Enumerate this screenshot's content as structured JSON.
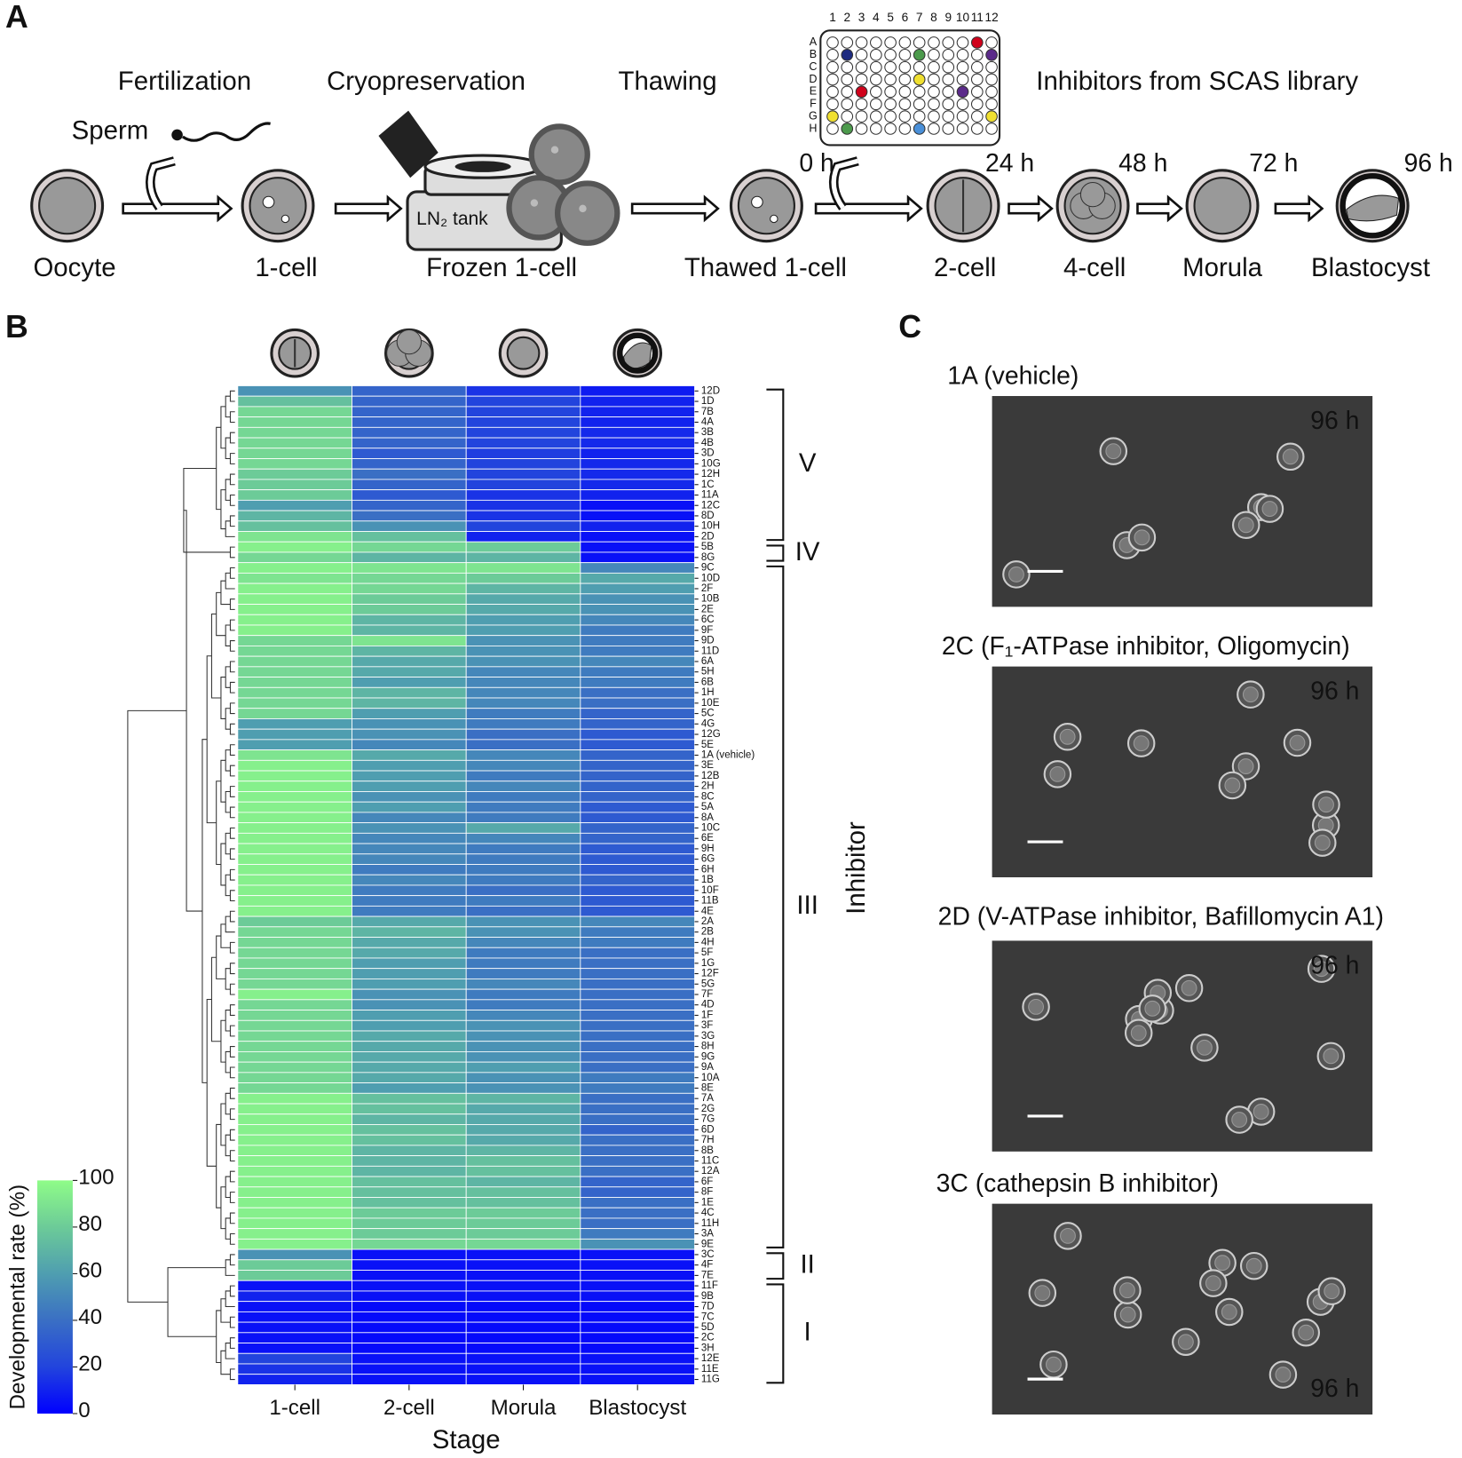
{
  "panel_a": {
    "label": "A",
    "steps": [
      "Fertilization",
      "Cryopreservation",
      "Thawing"
    ],
    "sperm": "Sperm",
    "tank": "LN₂ tank",
    "stages": [
      "Oocyte",
      "1-cell",
      "Frozen 1-cell",
      "Thawed 1-cell",
      "2-cell",
      "4-cell",
      "Morula",
      "Blastocyst"
    ],
    "times": [
      "0 h",
      "24 h",
      "48 h",
      "72 h",
      "96 h"
    ],
    "library": "Inhibitors from SCAS library",
    "plate_columns": [
      "1",
      "2",
      "3",
      "4",
      "5",
      "6",
      "7",
      "8",
      "9",
      "10",
      "11",
      "12"
    ],
    "plate_rows": [
      "A",
      "B",
      "C",
      "D",
      "E",
      "F",
      "G",
      "H"
    ]
  },
  "panel_b": {
    "label": "B"
  },
  "chart_data": {
    "type": "heatmap",
    "x_label": "Stage",
    "y_label": "Inhibitor",
    "categories": [
      "1-cell",
      "2-cell",
      "Morula",
      "Blastocyst"
    ],
    "rows": [
      "12D",
      "1D",
      "7B",
      "4A",
      "3B",
      "4B",
      "3D",
      "10G",
      "12H",
      "1C",
      "11A",
      "12C",
      "8D",
      "10H",
      "2D",
      "5B",
      "8G",
      "9C",
      "10D",
      "2F",
      "10B",
      "2E",
      "6C",
      "9F",
      "9D",
      "11D",
      "6A",
      "5H",
      "6B",
      "1H",
      "10E",
      "5C",
      "4G",
      "12G",
      "5E",
      "1A (vehicle)",
      "3E",
      "12B",
      "2H",
      "8C",
      "5A",
      "8A",
      "10C",
      "6E",
      "9H",
      "6G",
      "6H",
      "1B",
      "10F",
      "11B",
      "4E",
      "2A",
      "2B",
      "4H",
      "5F",
      "1G",
      "12F",
      "5G",
      "7F",
      "4D",
      "1F",
      "3F",
      "3G",
      "8H",
      "9G",
      "9A",
      "10A",
      "8E",
      "7A",
      "2G",
      "7G",
      "6D",
      "7H",
      "8B",
      "11C",
      "12A",
      "6F",
      "8F",
      "1E",
      "4C",
      "11H",
      "3A",
      "9E",
      "3C",
      "4F",
      "7E",
      "11F",
      "9B",
      "7D",
      "7C",
      "5D",
      "2C",
      "3H",
      "12E",
      "11E",
      "11G"
    ],
    "values": [
      [
        55,
        35,
        15,
        8
      ],
      [
        75,
        35,
        20,
        10
      ],
      [
        85,
        35,
        20,
        10
      ],
      [
        85,
        35,
        20,
        10
      ],
      [
        85,
        35,
        20,
        12
      ],
      [
        85,
        35,
        20,
        12
      ],
      [
        85,
        30,
        18,
        10
      ],
      [
        85,
        35,
        20,
        12
      ],
      [
        80,
        40,
        20,
        12
      ],
      [
        80,
        35,
        20,
        12
      ],
      [
        80,
        30,
        15,
        10
      ],
      [
        60,
        35,
        15,
        5
      ],
      [
        70,
        40,
        15,
        5
      ],
      [
        75,
        55,
        20,
        10
      ],
      [
        90,
        75,
        10,
        5
      ],
      [
        95,
        85,
        80,
        5
      ],
      [
        85,
        70,
        70,
        5
      ],
      [
        95,
        90,
        90,
        50
      ],
      [
        90,
        85,
        80,
        65
      ],
      [
        95,
        85,
        70,
        60
      ],
      [
        95,
        80,
        65,
        55
      ],
      [
        95,
        80,
        65,
        55
      ],
      [
        95,
        70,
        60,
        50
      ],
      [
        95,
        70,
        60,
        45
      ],
      [
        85,
        90,
        55,
        45
      ],
      [
        85,
        70,
        55,
        45
      ],
      [
        85,
        65,
        55,
        50
      ],
      [
        85,
        65,
        50,
        45
      ],
      [
        85,
        60,
        50,
        45
      ],
      [
        85,
        70,
        50,
        40
      ],
      [
        85,
        70,
        50,
        40
      ],
      [
        85,
        60,
        45,
        35
      ],
      [
        60,
        55,
        45,
        35
      ],
      [
        60,
        55,
        40,
        30
      ],
      [
        60,
        50,
        40,
        30
      ],
      [
        90,
        65,
        50,
        35
      ],
      [
        95,
        60,
        50,
        35
      ],
      [
        95,
        60,
        45,
        35
      ],
      [
        95,
        60,
        50,
        35
      ],
      [
        95,
        55,
        45,
        35
      ],
      [
        95,
        60,
        45,
        30
      ],
      [
        95,
        50,
        45,
        30
      ],
      [
        95,
        55,
        65,
        35
      ],
      [
        95,
        50,
        50,
        35
      ],
      [
        95,
        50,
        45,
        30
      ],
      [
        95,
        50,
        45,
        30
      ],
      [
        95,
        45,
        45,
        30
      ],
      [
        95,
        50,
        45,
        35
      ],
      [
        95,
        45,
        40,
        30
      ],
      [
        95,
        45,
        45,
        30
      ],
      [
        95,
        45,
        40,
        30
      ],
      [
        80,
        65,
        55,
        50
      ],
      [
        85,
        70,
        55,
        45
      ],
      [
        85,
        65,
        50,
        45
      ],
      [
        85,
        65,
        45,
        40
      ],
      [
        85,
        60,
        45,
        40
      ],
      [
        85,
        60,
        45,
        40
      ],
      [
        85,
        60,
        50,
        40
      ],
      [
        95,
        55,
        45,
        40
      ],
      [
        85,
        55,
        45,
        40
      ],
      [
        85,
        60,
        50,
        40
      ],
      [
        85,
        60,
        55,
        40
      ],
      [
        85,
        65,
        55,
        40
      ],
      [
        85,
        65,
        55,
        40
      ],
      [
        85,
        65,
        55,
        40
      ],
      [
        85,
        65,
        60,
        40
      ],
      [
        85,
        65,
        55,
        45
      ],
      [
        85,
        60,
        55,
        45
      ],
      [
        95,
        75,
        70,
        40
      ],
      [
        95,
        75,
        65,
        40
      ],
      [
        95,
        70,
        65,
        40
      ],
      [
        95,
        75,
        65,
        35
      ],
      [
        95,
        75,
        65,
        40
      ],
      [
        95,
        70,
        70,
        40
      ],
      [
        95,
        70,
        75,
        40
      ],
      [
        95,
        70,
        75,
        40
      ],
      [
        95,
        75,
        70,
        35
      ],
      [
        95,
        75,
        75,
        35
      ],
      [
        95,
        75,
        75,
        40
      ],
      [
        95,
        80,
        80,
        40
      ],
      [
        95,
        80,
        80,
        40
      ],
      [
        95,
        80,
        80,
        45
      ],
      [
        95,
        85,
        85,
        55
      ],
      [
        55,
        5,
        5,
        5
      ],
      [
        80,
        5,
        5,
        5
      ],
      [
        80,
        5,
        5,
        5
      ],
      [
        5,
        5,
        5,
        5
      ],
      [
        10,
        5,
        5,
        5
      ],
      [
        5,
        3,
        3,
        3
      ],
      [
        5,
        3,
        3,
        3
      ],
      [
        5,
        3,
        3,
        3
      ],
      [
        5,
        3,
        3,
        3
      ],
      [
        5,
        3,
        3,
        3
      ],
      [
        20,
        5,
        5,
        5
      ],
      [
        15,
        5,
        5,
        5
      ],
      [
        10,
        5,
        5,
        5
      ]
    ],
    "highlight": {
      "row": 35,
      "color": "#d0021b"
    },
    "clusters": [
      "V",
      "IV",
      "III",
      "II",
      "I"
    ],
    "colorbar_label": "Developmental rate (%)",
    "clim": [
      0,
      100
    ],
    "cticks": [
      0,
      20,
      40,
      60,
      80,
      100
    ],
    "colorscale": [
      "#0000ff",
      "#2244dd",
      "#3a6fc4",
      "#4f9eb0",
      "#6ccb98",
      "#8ffc88"
    ]
  },
  "panel_c": {
    "label": "C",
    "images": [
      {
        "title": "1A (vehicle)",
        "time": "96 h"
      },
      {
        "title": "2C (F₁-ATPase inhibitor, Oligomycin)",
        "time": "96 h"
      },
      {
        "title": "2D (V-ATPase inhibitor, Bafillomycin A1)",
        "time": "96 h"
      },
      {
        "title": "3C (cathepsin B inhibitor)",
        "time": "96 h"
      }
    ]
  }
}
